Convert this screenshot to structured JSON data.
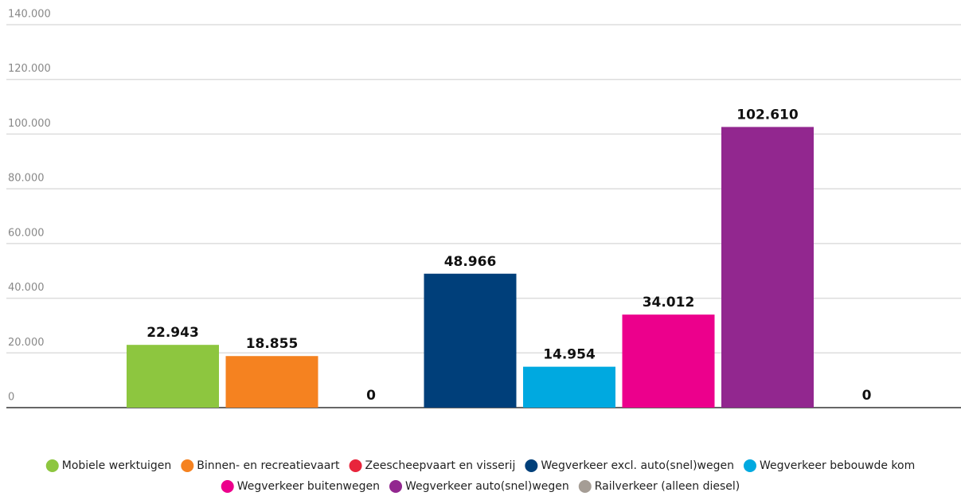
{
  "chart_data": {
    "type": "bar",
    "categories": [
      null
    ],
    "series": [
      {
        "name": "Mobiele werktuigen",
        "color": "#8dc63f",
        "values": [
          22943
        ],
        "value_labels": [
          "22.943"
        ]
      },
      {
        "name": "Binnen- en recreatievaart",
        "color": "#f58220",
        "values": [
          18855
        ],
        "value_labels": [
          "18.855"
        ]
      },
      {
        "name": "Zeescheepvaart en visserij",
        "color": "#e8253c",
        "values": [
          0
        ]
      },
      {
        "name": "Wegverkeer excl. auto(snel)wegen",
        "color": "#003f7a",
        "values": [
          48966
        ],
        "value_labels": [
          "48.966"
        ]
      },
      {
        "name": "Wegverkeer bebouwde kom",
        "color": "#00a9e0",
        "values": [
          14954
        ],
        "value_labels": [
          "14.954"
        ]
      },
      {
        "name": "Wegverkeer buitenwegen",
        "color": "#ec008c",
        "values": [
          34012
        ],
        "value_labels": [
          "34.012"
        ]
      },
      {
        "name": "Wegverkeer auto(snel)wegen",
        "color": "#92278f",
        "values": [
          102610
        ],
        "value_labels": [
          "102.610"
        ]
      },
      {
        "name": "Railverkeer (alleen diesel)",
        "color": "#a59d95",
        "values": [
          0
        ]
      }
    ],
    "ylim": [
      0,
      140000
    ],
    "yticks": [
      0,
      {
        "value": 20000,
        "label": "20.000"
      },
      {
        "value": 40000,
        "label": "40.000"
      },
      {
        "value": 60000,
        "label": "60.000"
      },
      {
        "value": 80000,
        "label": "80.000"
      },
      {
        "value": 100000,
        "label": "100.000"
      },
      {
        "value": 120000,
        "label": "120.000"
      },
      {
        "value": 140000,
        "label": "140.000"
      }
    ],
    "grid": true,
    "legend": "bottom"
  }
}
